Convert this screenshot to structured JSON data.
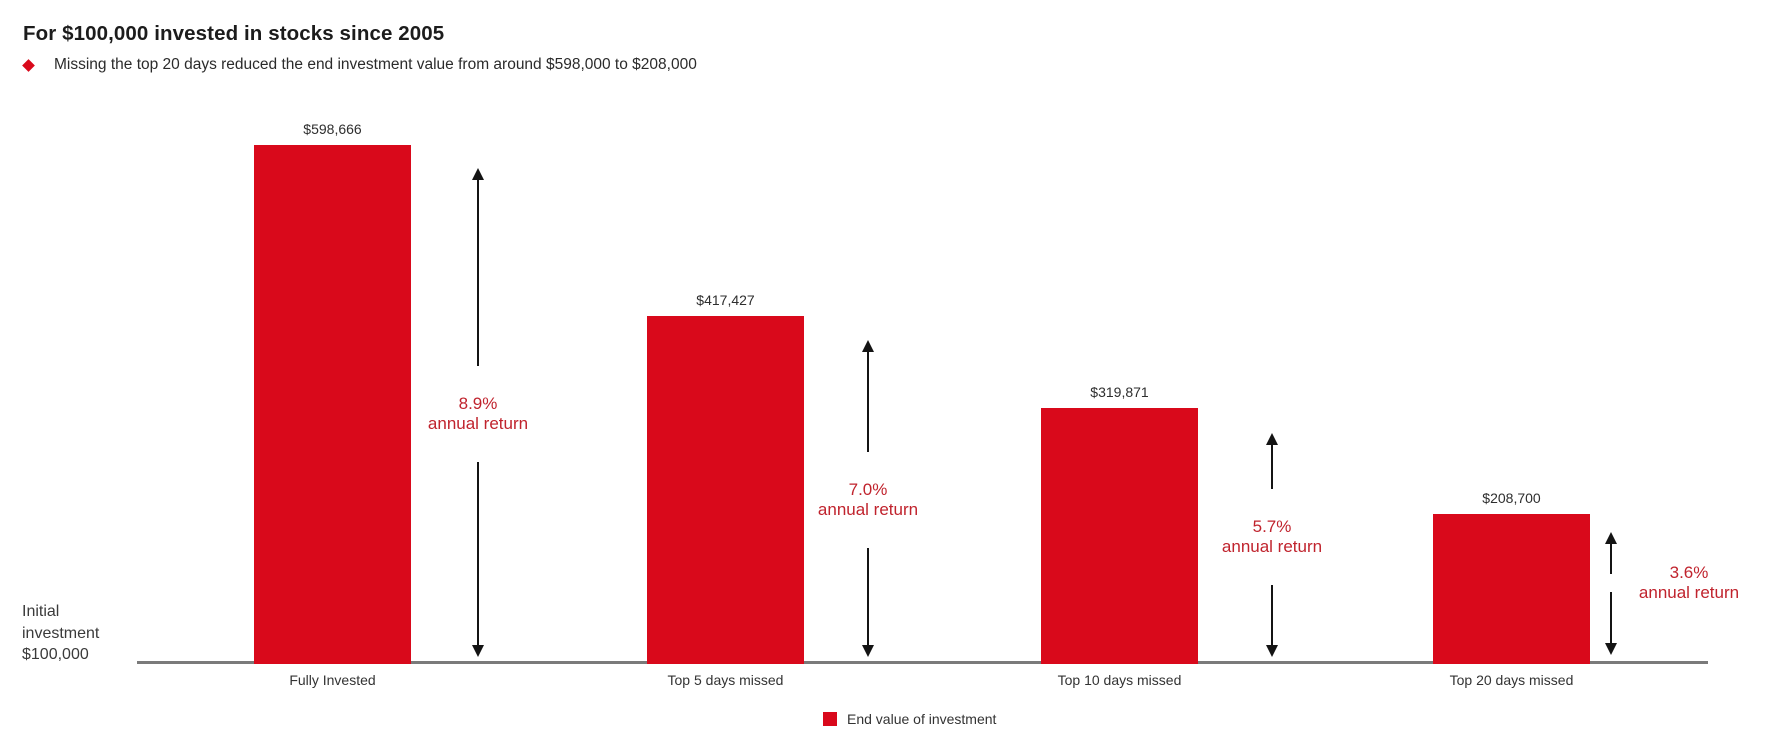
{
  "header": {
    "title": "For $100,000 invested in stocks since 2005",
    "bullet_text": "Missing the top 20 days reduced the end investment value from around $598,000 to $208,000"
  },
  "axis_note": "Initial\ninvestment\n$100,000",
  "legend": {
    "label": "End value of investment"
  },
  "colors": {
    "bar_red": "#d9091b",
    "annotation_red": "#c0232d",
    "axis_gray": "#7a7a7a",
    "arrow_black": "#141414"
  },
  "chart_data": {
    "type": "bar",
    "title": "For $100,000 invested in stocks since 2005",
    "subtitle": "Missing the top 20 days reduced the end investment value from around $598,000 to $208,000",
    "categories": [
      "Fully Invested",
      "Top 5 days missed",
      "Top 10 days missed",
      "Top 20 days missed"
    ],
    "values": [
      598666,
      417427,
      319871,
      208700
    ],
    "value_labels": [
      "$598,666",
      "$417,427",
      "$319,871",
      "$208,700"
    ],
    "annual_returns": [
      {
        "rate": "8.9%",
        "label": "annual return"
      },
      {
        "rate": "7.0%",
        "label": "annual return"
      },
      {
        "rate": "5.7%",
        "label": "annual return"
      },
      {
        "rate": "3.6%",
        "label": "annual return"
      }
    ],
    "baseline_label": "Initial investment $100,000",
    "baseline_value": 100000,
    "ylim": [
      51000,
      650000
    ],
    "xlabel": "",
    "ylabel": "",
    "grid": false,
    "legend": [
      "End value of investment"
    ],
    "legend_position": "bottom"
  }
}
